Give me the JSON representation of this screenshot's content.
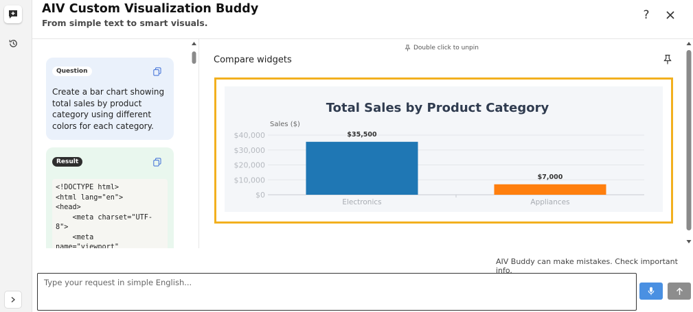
{
  "app": {
    "title": "AIV Custom Visualization Buddy",
    "subtitle": "From simple text to smart visuals."
  },
  "header": {
    "help_label": "?",
    "icons": [
      "help-icon",
      "close-icon"
    ]
  },
  "rail": {
    "icons": [
      "chat-icon",
      "history-icon",
      "chevron-right-icon"
    ]
  },
  "chat": {
    "question": {
      "tag": "Question",
      "text": "Create a bar chart showing total sales by product category using different colors for each category."
    },
    "result": {
      "tag": "Result",
      "code": "<!DOCTYPE html>\n<html lang=\"en\">\n<head>\n    <meta charset=\"UTF-\n8\">\n    <meta\nname=\"viewport\""
    }
  },
  "main": {
    "pin_hint": "Double click to unpin",
    "widget_title": "Compare widgets"
  },
  "footer": {
    "disclaimer": "AIV Buddy can make mistakes. Check important info.",
    "input_placeholder": "Type your request in simple English...",
    "input_value": ""
  },
  "colors": {
    "accent_frame": "#f2b01e",
    "question_bg": "#eaf1fb",
    "result_bg": "#e9f7ee",
    "mic_button": "#4a90e2",
    "send_button": "#8d8d8d"
  },
  "chart_data": {
    "type": "bar",
    "title": "Total Sales by Product Category",
    "ylabel": "Sales ($)",
    "xlabel": "",
    "categories": [
      "Electronics",
      "Appliances"
    ],
    "values": [
      35500,
      7000
    ],
    "value_labels": [
      "$35,500",
      "$7,000"
    ],
    "colors": [
      "#1f77b4",
      "#ff7f0e"
    ],
    "yticks": [
      0,
      10000,
      20000,
      30000,
      40000
    ],
    "ytick_labels": [
      "$0",
      "$10,000",
      "$20,000",
      "$30,000",
      "$40,000"
    ],
    "ylim": [
      0,
      40000
    ],
    "grid": true
  }
}
